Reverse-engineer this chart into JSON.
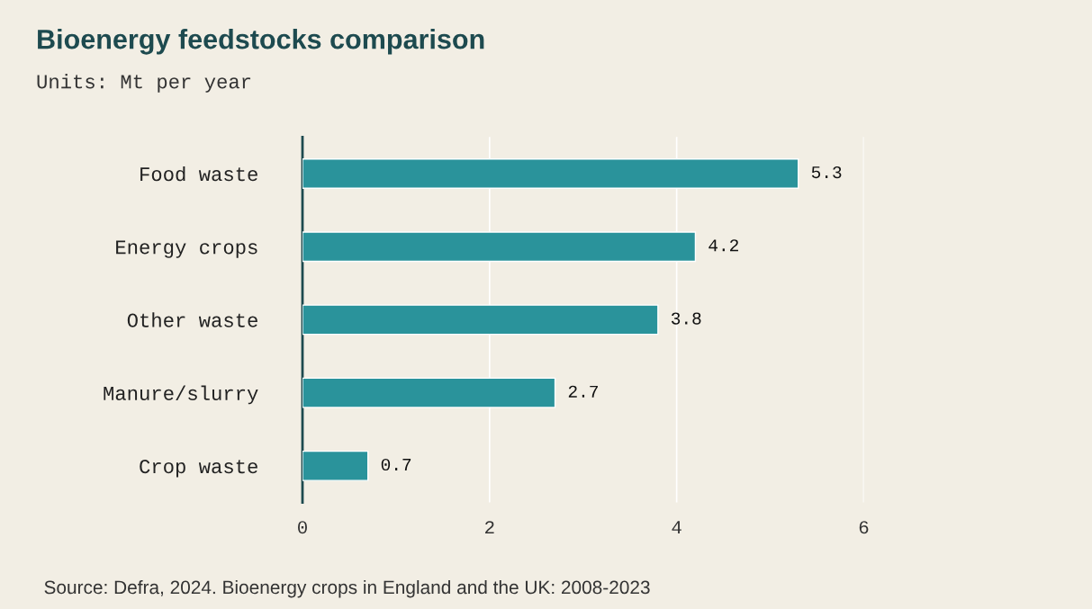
{
  "chart_data": {
    "type": "bar",
    "orientation": "horizontal",
    "title": "Bioenergy feedstocks comparison",
    "subtitle": "Units: Mt per year",
    "categories": [
      "Food waste",
      "Energy crops",
      "Other waste",
      "Manure/slurry",
      "Crop waste"
    ],
    "values": [
      5.3,
      4.2,
      3.8,
      2.7,
      0.7
    ],
    "color": "#2a939b",
    "xlim": [
      0,
      6
    ],
    "xticks": [
      0,
      2,
      4,
      6
    ],
    "grid": "x",
    "data_labels": true,
    "legend": false,
    "annotations": [
      "Source: Defra, 2024. Bioenergy crops in England and the UK: 2008-2023"
    ]
  }
}
